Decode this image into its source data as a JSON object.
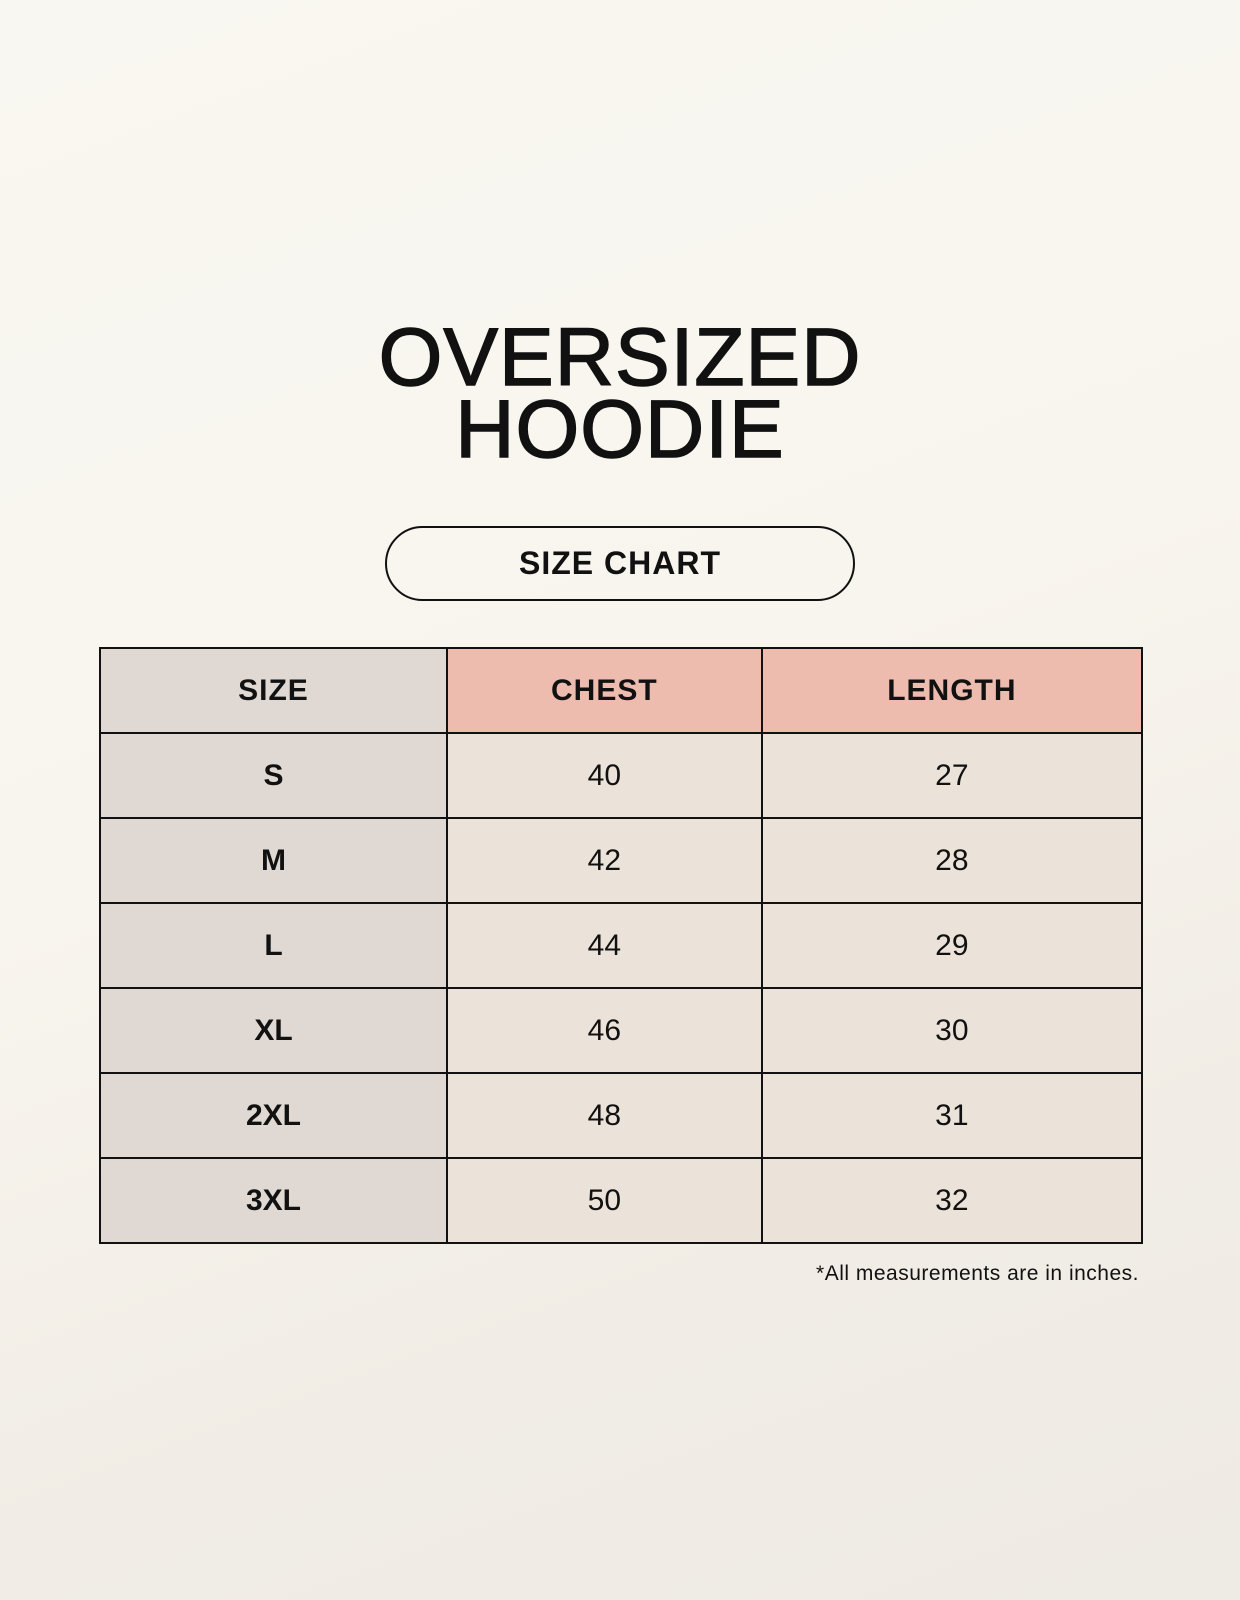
{
  "title_line1": "OVERSIZED",
  "title_line2": "HOODIE",
  "badge": "SIZE CHART",
  "table": {
    "headers": [
      "SIZE",
      "CHEST",
      "LENGTH"
    ],
    "rows": [
      [
        "S",
        "40",
        "27"
      ],
      [
        "M",
        "42",
        "28"
      ],
      [
        "L",
        "44",
        "29"
      ],
      [
        "XL",
        "46",
        "30"
      ],
      [
        "2XL",
        "48",
        "31"
      ],
      [
        "3XL",
        "50",
        "32"
      ]
    ]
  },
  "footnote": "*All measurements are in inches.",
  "colors": {
    "size_column": "#e0d9d3",
    "header_accent": "#edbcae",
    "cell": "#ebe3d9"
  }
}
